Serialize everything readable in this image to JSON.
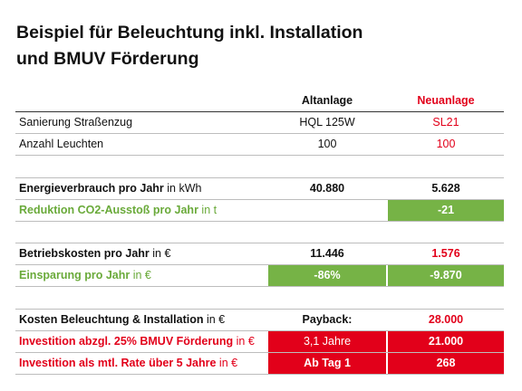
{
  "title_line1": "Beispiel für Beleuchtung inkl. Installation",
  "title_line2": "und BMUV Förderung",
  "headers": {
    "old": "Altanlage",
    "new": "Neuanlage"
  },
  "rows": {
    "sanierung": {
      "label": "Sanierung Straßenzug",
      "old": "HQL 125W",
      "new": "SL21"
    },
    "leuchten": {
      "label": "Anzahl Leuchten",
      "old": "100",
      "new": "100"
    },
    "energie": {
      "label": "Energieverbrauch pro Jahr",
      "unit": " in kWh",
      "old": "40.880",
      "new": "5.628"
    },
    "co2": {
      "label": "Reduktion CO2-Ausstoß pro Jahr",
      "unit": " in t",
      "new": "-21"
    },
    "betrieb": {
      "label": "Betriebskosten pro Jahr",
      "unit": " in €",
      "old": "11.446",
      "new": "1.576"
    },
    "einsparung": {
      "label": "Einsparung pro Jahr",
      "unit": " in €",
      "old": "-86%",
      "new": "-9.870"
    },
    "kosten": {
      "label": "Kosten Beleuchtung & Installation",
      "unit": " in €",
      "old": "Payback:",
      "new": "28.000"
    },
    "foerderung": {
      "label": "Investition abzgl. 25% BMUV Förderung",
      "unit": " in €",
      "old": "3,1 Jahre",
      "new": "21.000"
    },
    "rate": {
      "label": "Investition als mtl. Rate über 5 Jahre",
      "unit": " in €",
      "old": "Ab Tag 1",
      "new": "268"
    }
  },
  "colors": {
    "red": "#e2001a",
    "green": "#76b346",
    "green_text": "#6aaa3a"
  }
}
